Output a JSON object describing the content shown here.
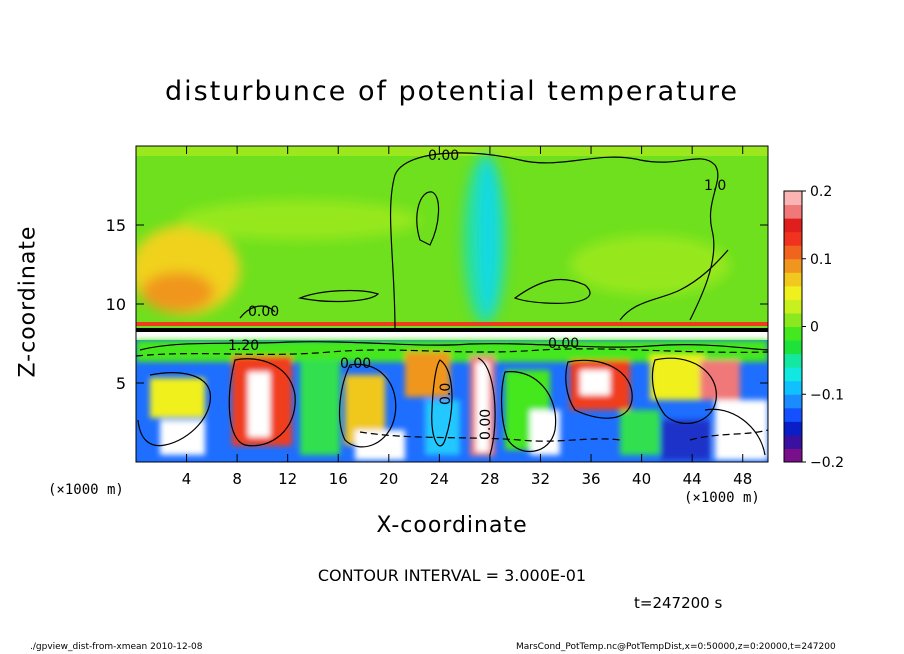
{
  "chart_data": {
    "type": "heatmap",
    "title": "disturbunce of potential temperature",
    "xlabel": "X-coordinate",
    "ylabel": "Z-coordinate",
    "x_unit": "(×1000 m)",
    "x_range": [
      0,
      50
    ],
    "y_range": [
      0,
      20
    ],
    "x_ticks": [
      4,
      8,
      12,
      16,
      20,
      24,
      28,
      32,
      36,
      40,
      44,
      48
    ],
    "y_ticks": [
      5,
      10,
      15
    ],
    "colorbar": {
      "range": [
        -0.2,
        0.2
      ],
      "ticks": [
        "0.2",
        "0.1",
        "0",
        "−0.1",
        "−0.2"
      ],
      "colors": [
        "#7a0f8c",
        "#3a10a0",
        "#0a1ec8",
        "#1450ff",
        "#1a8cff",
        "#10c0ff",
        "#10e8e0",
        "#14e8a0",
        "#1ee23c",
        "#44e81e",
        "#8ce81e",
        "#c8f01e",
        "#f0f01e",
        "#f0c81e",
        "#f0961e",
        "#f0641e",
        "#f0321e",
        "#e01e1e",
        "#f07878",
        "#fab4b4"
      ]
    },
    "contour_interval": "CONTOUR INTERVAL = 3.000E-01",
    "contour_labels": [
      "0.00",
      "0.00",
      "0.00",
      "0.00",
      "0.00",
      "1.20",
      "0.0",
      "1.0"
    ],
    "time": "t=247200 s",
    "grid": false
  },
  "footer": {
    "left": "./gpview_dist-from-xmean  2010-12-08",
    "right": "MarsCond_PotTemp.nc@PotTempDist,x=0:50000,z=0:20000,t=247200"
  }
}
